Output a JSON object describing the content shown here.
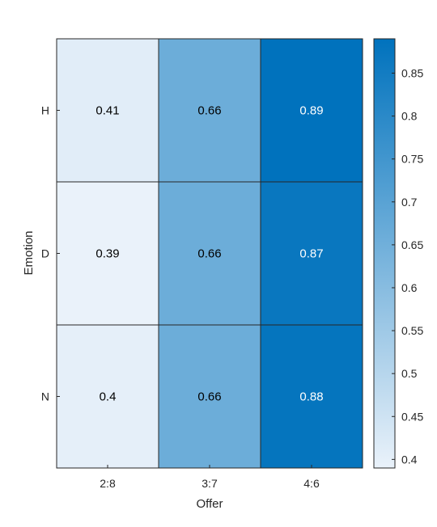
{
  "chart_data": {
    "type": "heatmap",
    "title": "",
    "xlabel": "Offer",
    "ylabel": "Emotion",
    "x_categories": [
      "2:8",
      "3:7",
      "4:6"
    ],
    "y_categories": [
      "H",
      "D",
      "N"
    ],
    "values": [
      [
        0.41,
        0.66,
        0.89
      ],
      [
        0.39,
        0.66,
        0.87
      ],
      [
        0.4,
        0.66,
        0.88
      ]
    ],
    "value_labels": [
      [
        "0.41",
        "0.66",
        "0.89"
      ],
      [
        "0.39",
        "0.66",
        "0.87"
      ],
      [
        "0.4",
        "0.66",
        "0.88"
      ]
    ],
    "colorbar": {
      "range": [
        0.39,
        0.89
      ],
      "ticks": [
        0.4,
        0.45,
        0.5,
        0.55,
        0.6,
        0.65,
        0.7,
        0.75,
        0.8,
        0.85
      ],
      "tick_labels": [
        "0.4",
        "0.45",
        "0.5",
        "0.55",
        "0.6",
        "0.65",
        "0.7",
        "0.75",
        "0.8",
        "0.85"
      ],
      "color_low": "#eaf2fa",
      "color_high": "#0072bd"
    },
    "grid": false,
    "legend": "colorbar-right"
  }
}
